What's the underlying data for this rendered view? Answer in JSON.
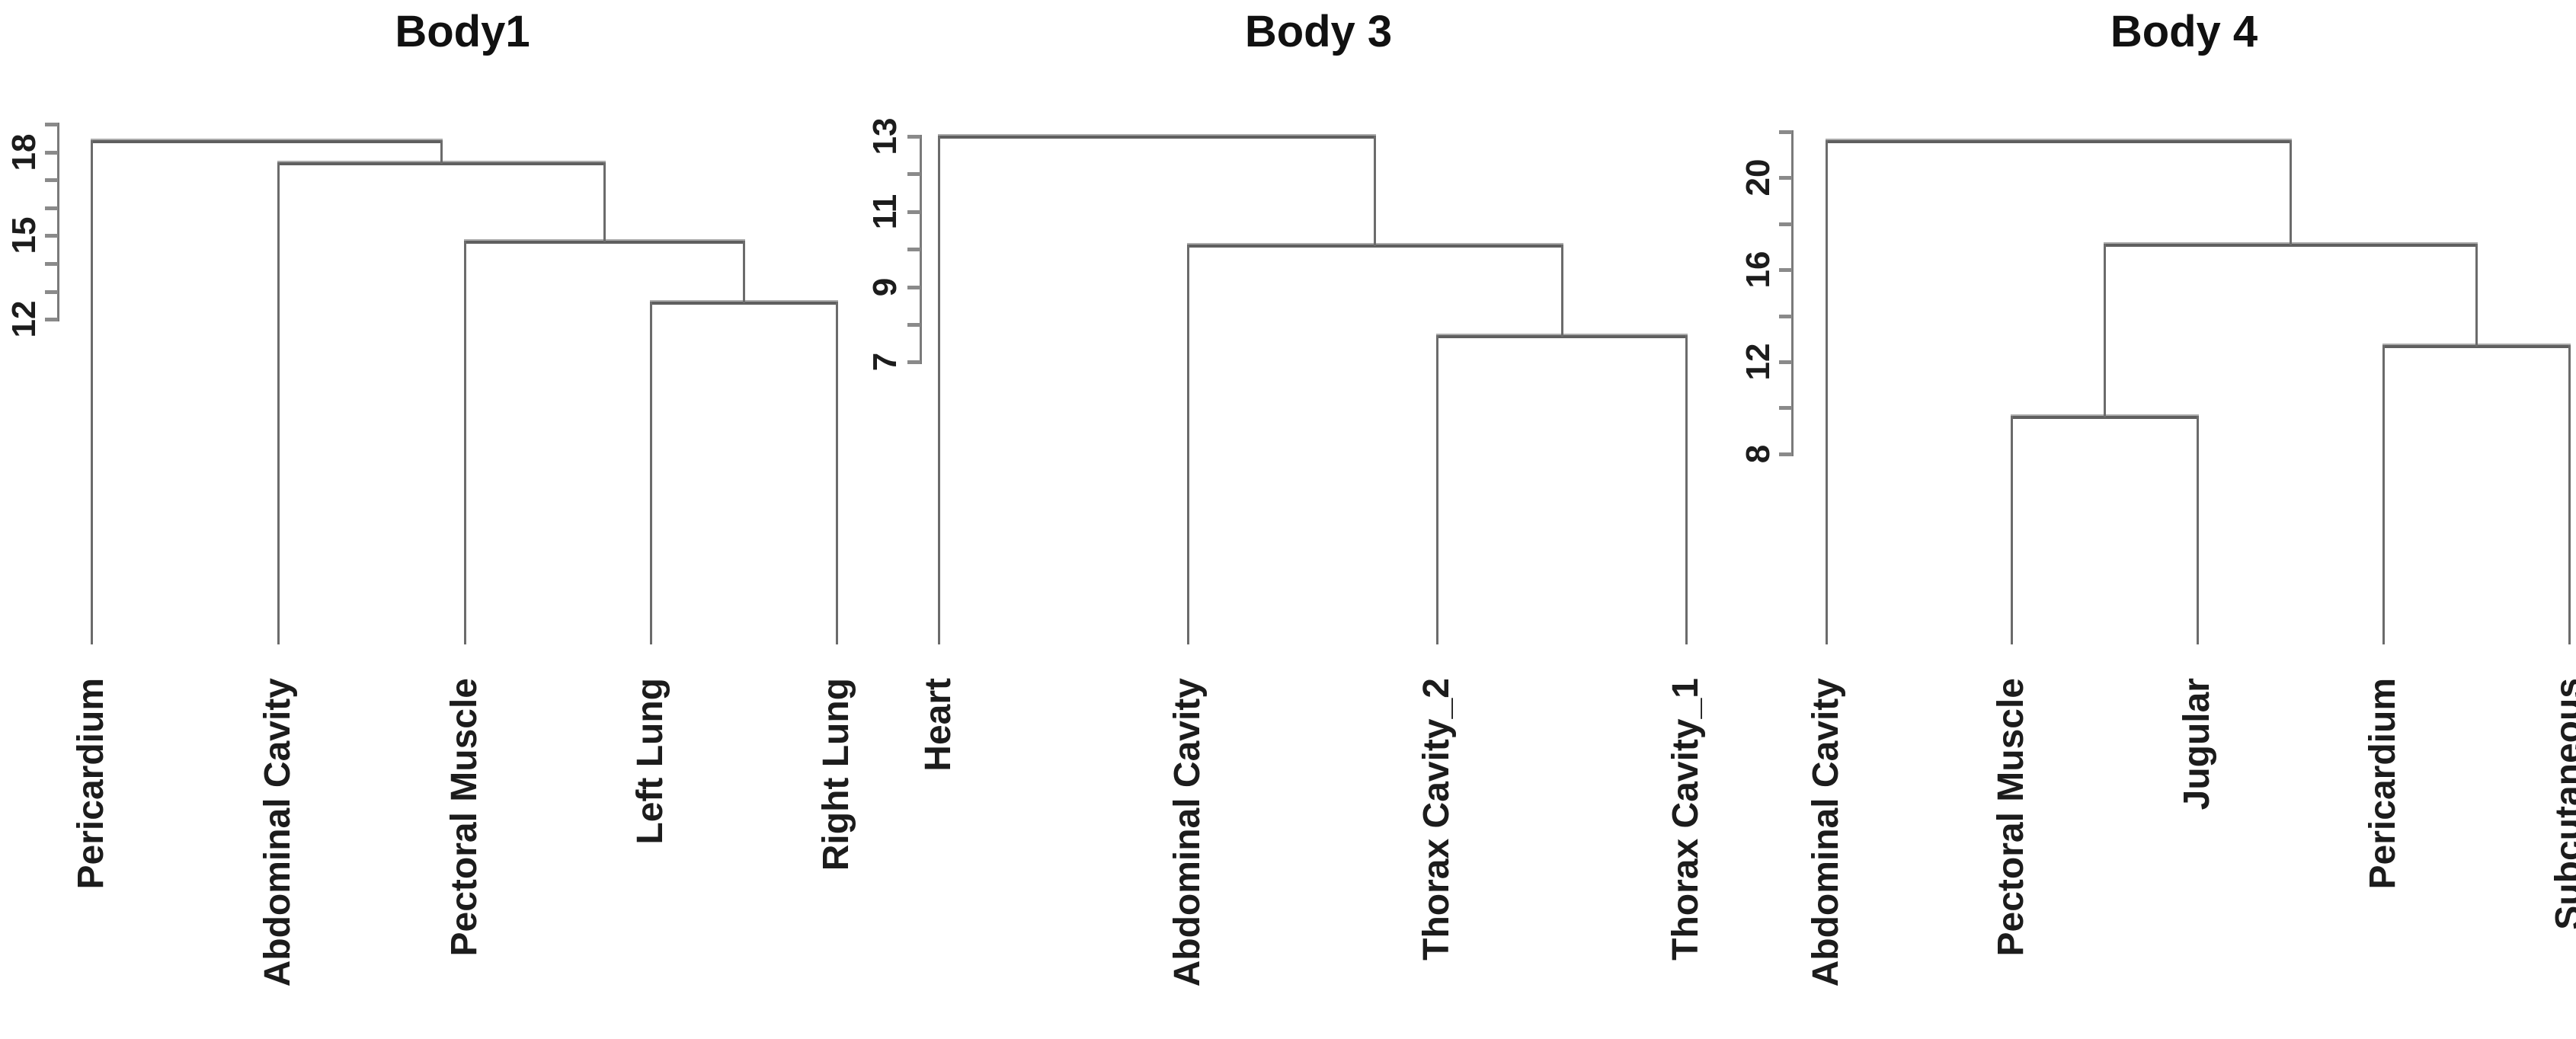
{
  "colors": {
    "background": "#ffffff",
    "axis_line": "#7a7a7a",
    "tick_mark": "#8a8a8a",
    "branch_line": "#6b6b6b",
    "bar_core": "#5f5f5f",
    "bar_highlight": "#ababab",
    "text": "#1c1c1c"
  },
  "chart_data": [
    {
      "type": "dendrogram",
      "title": "Body1",
      "orientation": "leaves-bottom",
      "yaxis": {
        "ticks": [
          12,
          13,
          14,
          15,
          16,
          17,
          18,
          19
        ],
        "labeled_ticks": [
          12,
          15,
          18
        ]
      },
      "leaves": [
        "Pericardium",
        "Abdominal Cavity",
        "Pectoral Muscle",
        "Left Lung",
        "Right Lung"
      ],
      "merges": [
        {
          "left": "L3",
          "right": "L4",
          "height": 12.6
        },
        {
          "left": "L2",
          "right": "M0",
          "height": 14.8
        },
        {
          "left": "L1",
          "right": "M1",
          "height": 17.6
        },
        {
          "left": "L0",
          "right": "M2",
          "height": 18.4
        }
      ]
    },
    {
      "type": "dendrogram",
      "title": "Body 3",
      "orientation": "leaves-bottom",
      "yaxis": {
        "ticks": [
          7,
          8,
          9,
          10,
          11,
          12,
          13
        ],
        "labeled_ticks": [
          7,
          9,
          11,
          13
        ]
      },
      "leaves": [
        "Heart",
        "Abdominal Cavity",
        "Thorax Cavity_2",
        "Thorax Cavity_1"
      ],
      "merges": [
        {
          "left": "L2",
          "right": "L3",
          "height": 7.7
        },
        {
          "left": "L1",
          "right": "M0",
          "height": 10.1
        },
        {
          "left": "L0",
          "right": "M1",
          "height": 13.0
        }
      ]
    },
    {
      "type": "dendrogram",
      "title": "Body 4",
      "orientation": "leaves-bottom",
      "yaxis": {
        "ticks": [
          8,
          10,
          12,
          14,
          16,
          18,
          20,
          22
        ],
        "labeled_ticks": [
          8,
          12,
          16,
          20
        ]
      },
      "leaves": [
        "Abdominal Cavity",
        "Pectoral Muscle",
        "Jugular",
        "Pericardium",
        "Subcutaneous"
      ],
      "merges": [
        {
          "left": "L1",
          "right": "L2",
          "height": 9.6
        },
        {
          "left": "L3",
          "right": "L4",
          "height": 12.7
        },
        {
          "left": "M0",
          "right": "M1",
          "height": 17.1
        },
        {
          "left": "L0",
          "right": "M2",
          "height": 21.6
        }
      ]
    }
  ]
}
